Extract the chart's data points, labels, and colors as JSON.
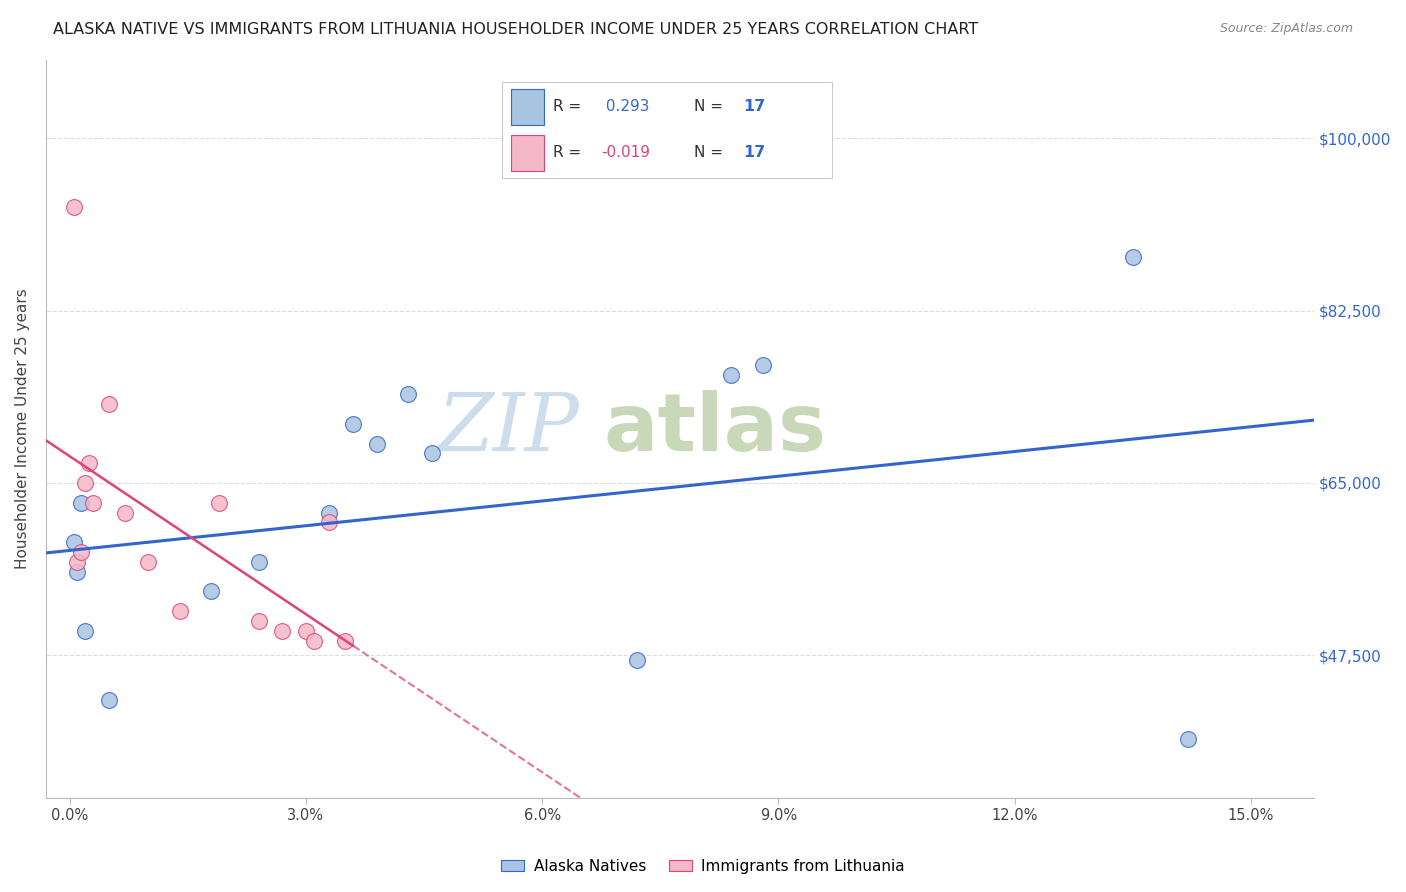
{
  "title": "ALASKA NATIVE VS IMMIGRANTS FROM LITHUANIA HOUSEHOLDER INCOME UNDER 25 YEARS CORRELATION CHART",
  "source": "Source: ZipAtlas.com",
  "ylabel": "Householder Income Under 25 years",
  "xlabel_ticks": [
    "0.0%",
    "3.0%",
    "6.0%",
    "9.0%",
    "12.0%",
    "15.0%"
  ],
  "xlabel_vals": [
    0.0,
    3.0,
    6.0,
    9.0,
    12.0,
    15.0
  ],
  "ytick_labels": [
    "$47,500",
    "$65,000",
    "$82,500",
    "$100,000"
  ],
  "ytick_vals": [
    47500,
    65000,
    82500,
    100000
  ],
  "ymin": 33000,
  "ymax": 108000,
  "xmin": -0.3,
  "xmax": 15.8,
  "r_blue": 0.293,
  "n_blue": 17,
  "r_pink": -0.019,
  "n_pink": 17,
  "blue_points_x": [
    0.05,
    0.1,
    0.15,
    0.2,
    0.5,
    1.8,
    2.4,
    3.3,
    3.6,
    3.9,
    4.3,
    4.6,
    7.2,
    8.4,
    8.8,
    13.5,
    14.2
  ],
  "blue_points_y": [
    59000,
    56000,
    63000,
    50000,
    43000,
    54000,
    57000,
    62000,
    71000,
    69000,
    74000,
    68000,
    47000,
    76000,
    77000,
    88000,
    39000
  ],
  "pink_points_x": [
    0.05,
    0.1,
    0.15,
    0.2,
    0.25,
    0.3,
    0.5,
    0.7,
    1.0,
    1.4,
    1.9,
    2.4,
    2.7,
    3.0,
    3.1,
    3.3,
    3.5
  ],
  "pink_points_y": [
    93000,
    57000,
    58000,
    65000,
    67000,
    63000,
    73000,
    62000,
    57000,
    52000,
    63000,
    51000,
    50000,
    50000,
    49000,
    61000,
    49000
  ],
  "blue_color": "#a8c4e0",
  "pink_color": "#f4b8c8",
  "blue_line_color": "#3366cc",
  "pink_line_color": "#dd4477",
  "bg_color": "#ffffff",
  "grid_color": "#dddddd",
  "legend_label_blue": "Alaska Natives",
  "legend_label_pink": "Immigrants from Lithuania",
  "watermark_zip_color": "#ccdded",
  "watermark_atlas_color": "#c8d8b8"
}
